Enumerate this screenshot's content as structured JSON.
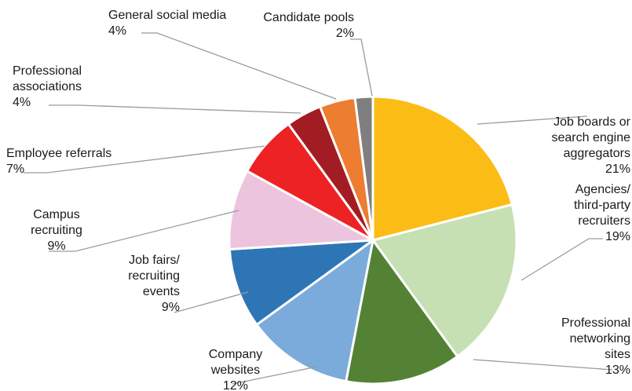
{
  "chart_data": {
    "type": "pie",
    "title": "",
    "start": "12 o'clock",
    "direction": "clockwise",
    "slices": [
      {
        "label": [
          "Job boards or",
          "search engine",
          "aggregators"
        ],
        "pct": "21%",
        "value": 21,
        "color": "#fbbc16"
      },
      {
        "label": [
          "Agencies/",
          "third-party",
          "recruiters"
        ],
        "pct": "19%",
        "value": 19,
        "color": "#c6e0b4"
      },
      {
        "label": [
          "Professional",
          "networking",
          "sites"
        ],
        "pct": "13%",
        "value": 13,
        "color": "#548235"
      },
      {
        "label": [
          "Company",
          "websites"
        ],
        "pct": "12%",
        "value": 12,
        "color": "#7aabdb"
      },
      {
        "label": [
          "Job fairs/",
          "recruiting",
          "events"
        ],
        "pct": "9%",
        "value": 9,
        "color": "#2e75b6"
      },
      {
        "label": [
          "Campus",
          "recruiting"
        ],
        "pct": "9%",
        "value": 9,
        "color": "#ecc4dd"
      },
      {
        "label": [
          "Employee referrals"
        ],
        "pct": "7%",
        "value": 7,
        "color": "#ed2224"
      },
      {
        "label": [
          "Professional",
          "associations"
        ],
        "pct": "4%",
        "value": 4,
        "color": "#a21c23"
      },
      {
        "label": [
          "General social media"
        ],
        "pct": "4%",
        "value": 4,
        "color": "#ed7d31"
      },
      {
        "label": [
          "Candidate pools"
        ],
        "pct": "2%",
        "value": 2,
        "color": "#7f7f7f"
      }
    ]
  }
}
